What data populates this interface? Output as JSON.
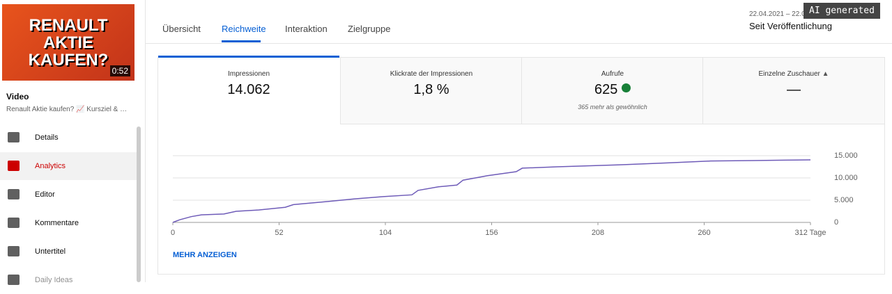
{
  "thumbnail": {
    "title": "RENAULT AKTIE KAUFEN?",
    "duration": "0:52"
  },
  "video": {
    "label": "Video",
    "title": "Renault Aktie kaufen? 📈 Kursziel & …"
  },
  "nav": [
    "Details",
    "Analytics",
    "Editor",
    "Kommentare",
    "Untertitel",
    "Daily Ideas"
  ],
  "tabs": [
    "Übersicht",
    "Reichweite",
    "Interaktion",
    "Zielgruppe"
  ],
  "date_range": {
    "dates": "22.04.2021 – 22.0",
    "label": "Seit Veröffentlichung"
  },
  "watermark": "AI generated",
  "cards": [
    {
      "title": "Impressionen",
      "value": "14.062"
    },
    {
      "title": "Klickrate der Impressionen",
      "value": "1,8 %"
    },
    {
      "title": "Aufrufe",
      "value": "625",
      "note": "365 mehr als gewöhnlich"
    },
    {
      "title": "Einzelne Zuschauer",
      "value": "—"
    }
  ],
  "more": "MEHR ANZEIGEN",
  "chart_data": {
    "type": "line",
    "color": "#6e5bb8",
    "grid": true,
    "x": [
      0,
      3.4,
      9,
      14,
      25,
      31,
      42,
      55,
      59,
      76,
      89,
      103,
      117,
      120,
      130,
      139,
      142,
      154,
      168,
      171,
      188,
      222,
      243,
      263,
      284,
      300,
      312
    ],
    "values": [
      0,
      600,
      1300,
      1700,
      1900,
      2500,
      2800,
      3400,
      4000,
      4700,
      5300,
      5800,
      6200,
      7200,
      8000,
      8400,
      9500,
      10500,
      11400,
      12200,
      12500,
      13000,
      13400,
      13800,
      13900,
      14000,
      14062
    ],
    "xlim": [
      0,
      312
    ],
    "xticks": [
      0,
      52,
      104,
      156,
      208,
      260,
      {
        "value": 312,
        "label": "312 Tage"
      }
    ],
    "ylim": [
      0,
      15000
    ],
    "yticks": [
      0,
      {
        "value": 5000,
        "label": "5.000"
      },
      {
        "value": 10000,
        "label": "10.000"
      },
      {
        "value": 15000,
        "label": "15.000"
      }
    ]
  }
}
